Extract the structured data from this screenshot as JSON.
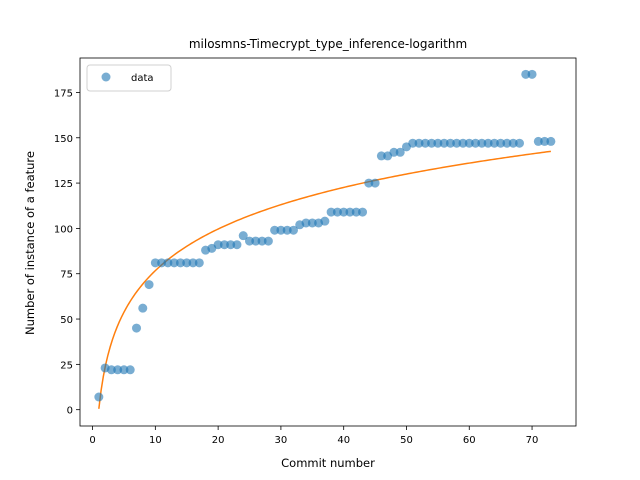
{
  "chart_data": {
    "type": "scatter",
    "title": "milosmns-Timecrypt_type_inference-logarithm",
    "xlabel": "Commit number",
    "ylabel": "Number of instance of a feature",
    "xlim": [
      -2,
      77
    ],
    "ylim": [
      -9,
      194
    ],
    "xticks": [
      0,
      10,
      20,
      30,
      40,
      50,
      60,
      70
    ],
    "yticks": [
      0,
      25,
      50,
      75,
      100,
      125,
      150,
      175
    ],
    "grid": false,
    "legend": {
      "placement": "top-left",
      "entries": [
        "data"
      ]
    },
    "colors": {
      "data": "#1f77b4",
      "fit": "#ff7f0e"
    },
    "series": [
      {
        "name": "data",
        "kind": "scatter",
        "x": [
          1,
          2,
          3,
          4,
          5,
          6,
          7,
          8,
          9,
          10,
          11,
          12,
          13,
          14,
          15,
          16,
          17,
          18,
          19,
          20,
          21,
          22,
          23,
          24,
          25,
          26,
          27,
          28,
          29,
          30,
          31,
          32,
          33,
          34,
          35,
          36,
          37,
          38,
          39,
          40,
          41,
          42,
          43,
          44,
          45,
          46,
          47,
          48,
          49,
          50,
          51,
          52,
          53,
          54,
          55,
          56,
          57,
          58,
          59,
          60,
          61,
          62,
          63,
          64,
          65,
          66,
          67,
          68,
          69,
          70,
          71,
          72,
          73
        ],
        "y": [
          7,
          23,
          22,
          22,
          22,
          22,
          45,
          56,
          69,
          81,
          81,
          81,
          81,
          81,
          81,
          81,
          81,
          88,
          89,
          91,
          91,
          91,
          91,
          96,
          93,
          93,
          93,
          93,
          99,
          99,
          99,
          99,
          102,
          103,
          103,
          103,
          104,
          109,
          109,
          109,
          109,
          109,
          109,
          125,
          125,
          140,
          140,
          142,
          142,
          145,
          147,
          147,
          147,
          147,
          147,
          147,
          147,
          147,
          147,
          147,
          147,
          147,
          147,
          147,
          147,
          147,
          147,
          147,
          185,
          185,
          148,
          148,
          148
        ]
      },
      {
        "kind": "line",
        "x_range": [
          1,
          73
        ],
        "model": "y = a*ln(x) + b",
        "a": 33.1,
        "b": 0.5
      }
    ]
  }
}
